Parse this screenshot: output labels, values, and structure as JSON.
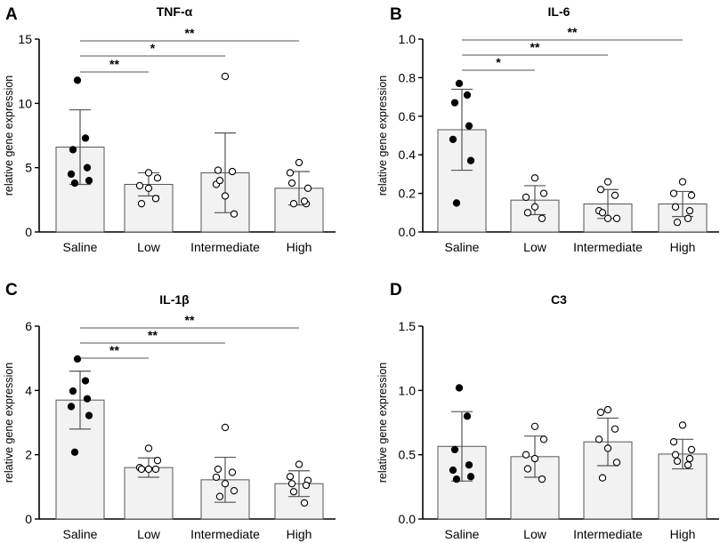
{
  "chart_data": [
    {
      "type": "bar",
      "panel": "A",
      "title": "TNF-α",
      "xlabel": "",
      "ylabel": "relative gene expression",
      "ylim": [
        0,
        15
      ],
      "yticks": [
        0,
        5,
        10,
        15
      ],
      "categories": [
        "Saline",
        "Low",
        "Intermediate",
        "High"
      ],
      "values": [
        6.6,
        3.7,
        4.6,
        3.4
      ],
      "errors": [
        2.9,
        0.9,
        3.1,
        1.3
      ],
      "points": [
        [
          11.8,
          7.3,
          6.4,
          5.0,
          4.5,
          4.0,
          3.8
        ],
        [
          4.6,
          4.2,
          3.6,
          3.4,
          2.2,
          2.6
        ],
        [
          12.1,
          4.8,
          4.7,
          3.7,
          2.8,
          1.4,
          4.0
        ],
        [
          5.4,
          4.6,
          3.4,
          3.8,
          2.2,
          2.2,
          2.4
        ]
      ],
      "point_style": [
        "filled",
        "open",
        "open",
        "open"
      ],
      "significance": [
        {
          "from": 0,
          "to": 1,
          "label": "**"
        },
        {
          "from": 0,
          "to": 2,
          "label": "*"
        },
        {
          "from": 0,
          "to": 3,
          "label": "**"
        }
      ]
    },
    {
      "type": "bar",
      "panel": "B",
      "title": "IL-6",
      "xlabel": "",
      "ylabel": "relative gene expression",
      "ylim": [
        0,
        1.0
      ],
      "yticks": [
        "0.0",
        "0.2",
        "0.4",
        "0.6",
        "0.8",
        "1.0"
      ],
      "categories": [
        "Saline",
        "Low",
        "Intermediate",
        "High"
      ],
      "values": [
        0.53,
        0.165,
        0.145,
        0.145
      ],
      "errors": [
        0.21,
        0.075,
        0.075,
        0.065
      ],
      "points": [
        [
          0.77,
          0.71,
          0.67,
          0.55,
          0.48,
          0.37,
          0.15
        ],
        [
          0.28,
          0.2,
          0.18,
          0.13,
          0.1,
          0.07
        ],
        [
          0.26,
          0.22,
          0.19,
          0.11,
          0.07,
          0.07,
          0.1
        ],
        [
          0.26,
          0.2,
          0.19,
          0.13,
          0.11,
          0.05,
          0.07
        ]
      ],
      "point_style": [
        "filled",
        "open",
        "open",
        "open"
      ],
      "significance": [
        {
          "from": 0,
          "to": 1,
          "label": "*"
        },
        {
          "from": 0,
          "to": 2,
          "label": "**"
        },
        {
          "from": 0,
          "to": 3,
          "label": "**"
        }
      ]
    },
    {
      "type": "bar",
      "panel": "C",
      "title": "IL-1β",
      "xlabel": "",
      "ylabel": "relative gene expression",
      "ylim": [
        0,
        6
      ],
      "yticks": [
        0,
        2,
        4,
        6
      ],
      "categories": [
        "Saline",
        "Low",
        "Intermediate",
        "High"
      ],
      "values": [
        3.7,
        1.6,
        1.22,
        1.1
      ],
      "errors": [
        0.9,
        0.3,
        0.7,
        0.4
      ],
      "points": [
        [
          4.98,
          4.3,
          3.98,
          3.74,
          3.5,
          3.22,
          2.08
        ],
        [
          2.2,
          1.82,
          1.6,
          1.55,
          1.55,
          1.55
        ],
        [
          2.85,
          1.55,
          1.45,
          1.3,
          1.1,
          0.88,
          0.7
        ],
        [
          1.7,
          1.32,
          1.2,
          1.1,
          1.05,
          0.85,
          0.5
        ]
      ],
      "point_style": [
        "filled",
        "open",
        "open",
        "open"
      ],
      "significance": [
        {
          "from": 0,
          "to": 1,
          "label": "**"
        },
        {
          "from": 0,
          "to": 2,
          "label": "**"
        },
        {
          "from": 0,
          "to": 3,
          "label": "**"
        }
      ]
    },
    {
      "type": "bar",
      "panel": "D",
      "title": "C3",
      "xlabel": "",
      "ylabel": "relative gene expression",
      "ylim": [
        0,
        1.5
      ],
      "yticks": [
        "0.0",
        "0.5",
        "1.0",
        "1.5"
      ],
      "categories": [
        "Saline",
        "Low",
        "Intermediate",
        "High"
      ],
      "values": [
        0.565,
        0.485,
        0.6,
        0.505
      ],
      "errors": [
        0.27,
        0.16,
        0.185,
        0.115
      ],
      "points": [
        [
          1.02,
          0.8,
          0.54,
          0.42,
          0.38,
          0.33,
          0.31
        ],
        [
          0.72,
          0.62,
          0.5,
          0.47,
          0.39,
          0.31
        ],
        [
          0.85,
          0.83,
          0.7,
          0.62,
          0.55,
          0.44,
          0.32
        ],
        [
          0.73,
          0.6,
          0.54,
          0.5,
          0.47,
          0.45,
          0.42
        ]
      ],
      "point_style": [
        "filled",
        "open",
        "open",
        "open"
      ],
      "significance": []
    }
  ]
}
